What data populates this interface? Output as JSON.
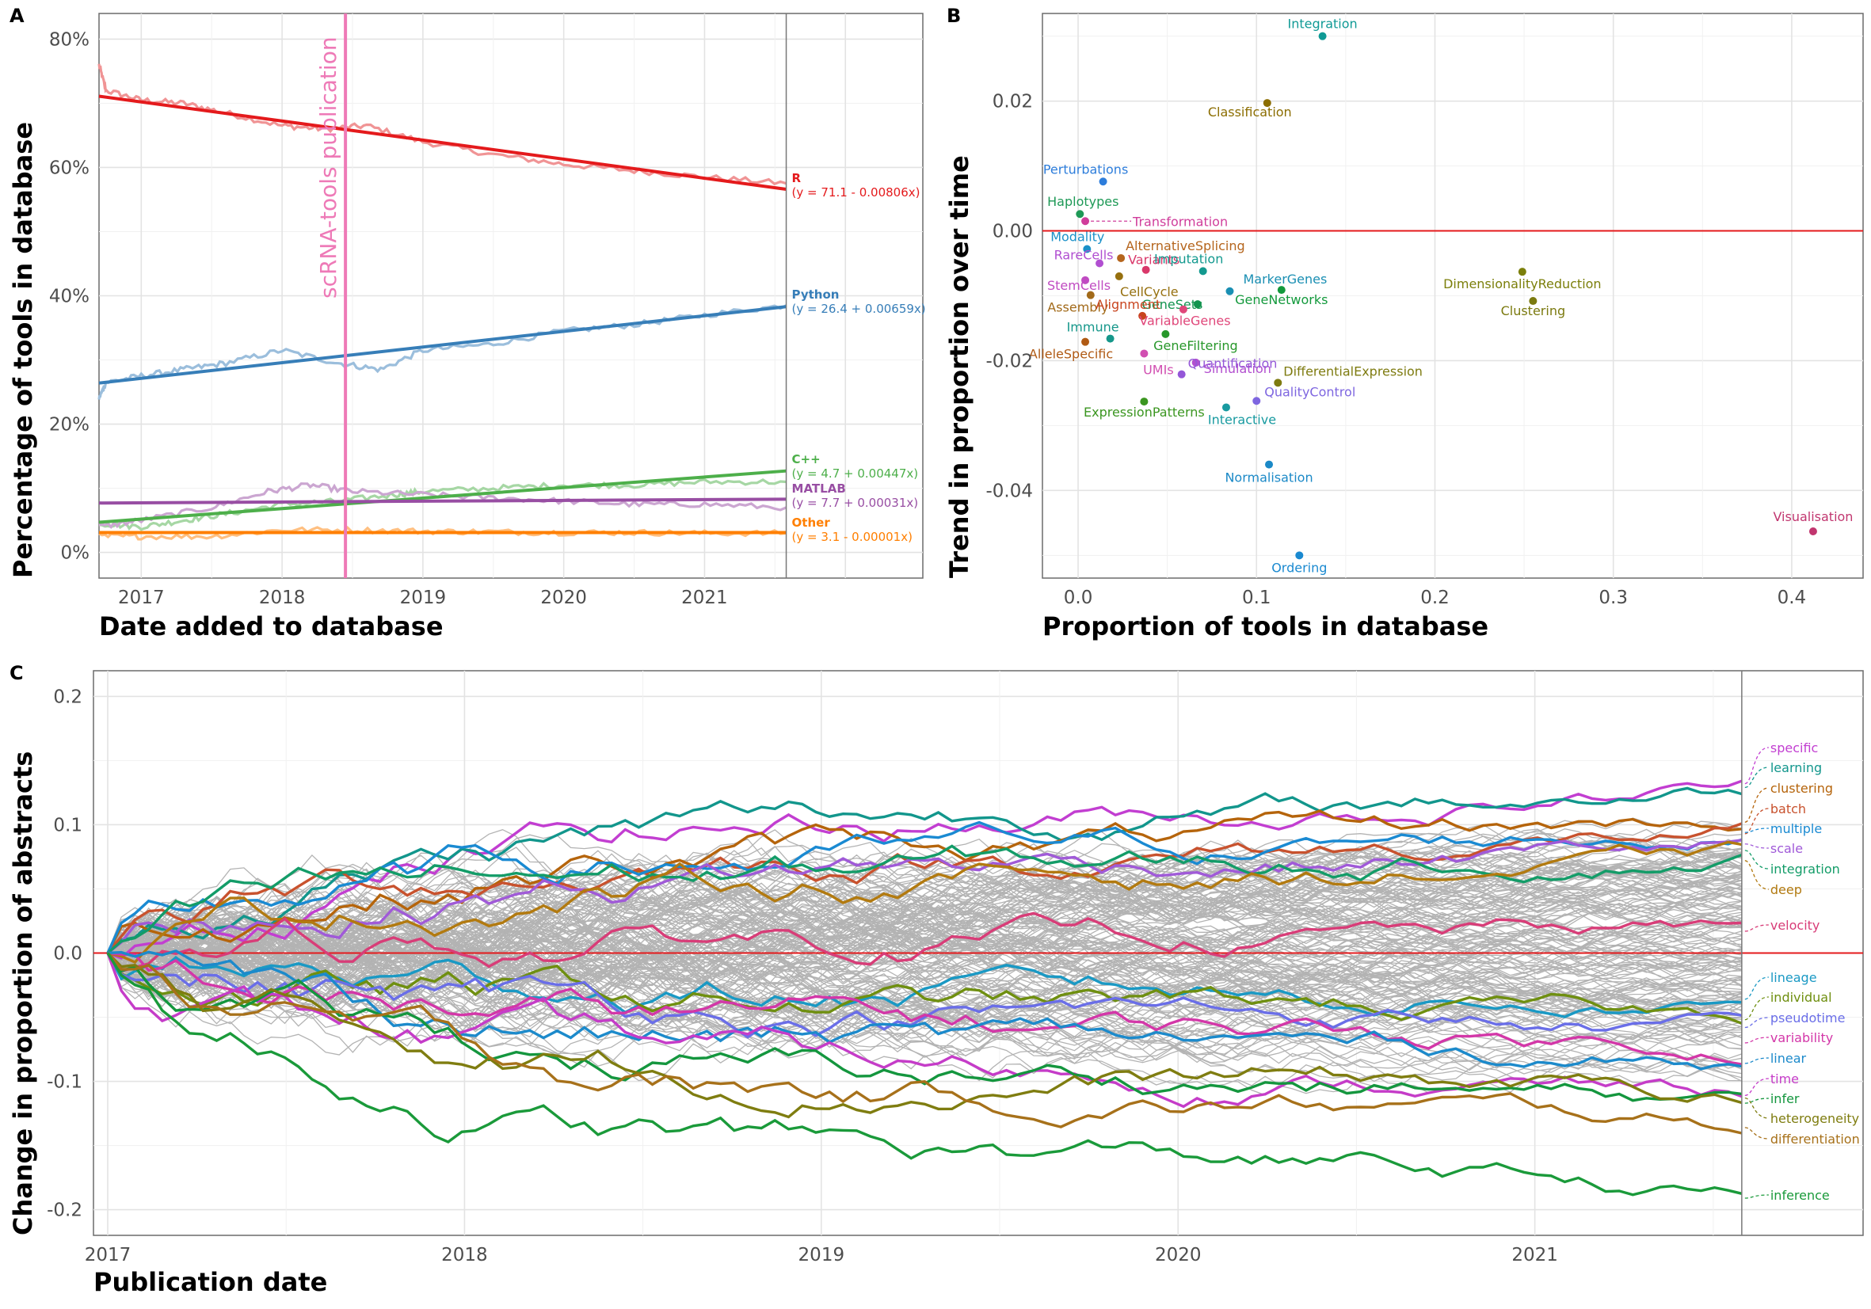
{
  "panels": {
    "A": {
      "label": "A",
      "xlabel": "Date added to database",
      "ylabel": "Percentage of tools in database",
      "xticks": [
        "2017",
        "2018",
        "2019",
        "2020",
        "2021"
      ],
      "yticks": [
        "0%",
        "20%",
        "40%",
        "60%",
        "80%"
      ],
      "vline_label": "scRNA-tools publication"
    },
    "B": {
      "label": "B",
      "xlabel": "Proportion of tools in database",
      "ylabel": "Trend in proportion over time",
      "xticks": [
        "0.0",
        "0.1",
        "0.2",
        "0.3",
        "0.4"
      ],
      "yticks": [
        "-0.04",
        "-0.02",
        "0.00",
        "0.02"
      ]
    },
    "C": {
      "label": "C",
      "xlabel": "Publication date",
      "ylabel": "Change in proportion of abstracts",
      "xticks": [
        "2017",
        "2018",
        "2019",
        "2020",
        "2021"
      ],
      "yticks": [
        "-0.2",
        "-0.1",
        "0.0",
        "0.1",
        "0.2"
      ]
    }
  },
  "chart_data": [
    {
      "type": "line",
      "panel": "A",
      "x_unit": "year",
      "xlim": [
        2016.7,
        2022.55
      ],
      "ylim": [
        -4,
        84
      ],
      "vline_x": 2018.45,
      "end_x": 2021.58,
      "series": [
        {
          "name": "R",
          "equation": "(y = 71.1 -  0.00806x)",
          "color": "#e41a1c",
          "light": "#f09495",
          "fit": [
            71.1,
            56.6
          ],
          "x": [
            2016.7,
            2016.75,
            2017.0,
            2017.3,
            2017.6,
            2018.0,
            2018.3,
            2018.6,
            2019.0,
            2019.5,
            2020.0,
            2020.5,
            2021.0,
            2021.58
          ],
          "y": [
            76,
            72,
            70.5,
            70,
            68.5,
            66.5,
            66,
            66.5,
            64,
            62,
            60.5,
            59.5,
            58.5,
            57.5
          ]
        },
        {
          "name": "Python",
          "equation": "(y = 26.4 + 0.00659x)",
          "color": "#377eb8",
          "light": "#9bbedc",
          "fit": [
            26.4,
            38.3
          ],
          "x": [
            2016.7,
            2016.75,
            2017.0,
            2017.3,
            2017.6,
            2018.0,
            2018.4,
            2018.7,
            2019.0,
            2019.5,
            2020.0,
            2020.5,
            2021.0,
            2021.58
          ],
          "y": [
            24,
            26.5,
            27.5,
            28.5,
            29.5,
            31.5,
            29.5,
            28.5,
            31.5,
            32.5,
            34.5,
            35.5,
            37,
            38.5
          ]
        },
        {
          "name": "C++",
          "equation": "(y = 4.7 + 0.00447x)",
          "color": "#4daf4a",
          "light": "#a6d7a4",
          "fit": [
            4.7,
            12.7
          ],
          "x": [
            2016.7,
            2017.0,
            2017.3,
            2017.6,
            2018.0,
            2018.4,
            2018.8,
            2019.0,
            2019.5,
            2020.0,
            2020.5,
            2021.0,
            2021.58
          ],
          "y": [
            4.5,
            4,
            5,
            6,
            7.5,
            8,
            9,
            9.5,
            10,
            10.5,
            10.5,
            11,
            11
          ]
        },
        {
          "name": "MATLAB",
          "equation": "(y = 7.7 + 0.00031x)",
          "color": "#984ea3",
          "light": "#cba6d1",
          "fit": [
            7.7,
            8.3
          ],
          "x": [
            2016.7,
            2017.0,
            2017.5,
            2017.9,
            2018.2,
            2018.5,
            2019.0,
            2019.5,
            2020.0,
            2020.5,
            2021.0,
            2021.58
          ],
          "y": [
            4,
            5,
            7,
            9.5,
            10.5,
            9.5,
            9,
            8.5,
            8,
            7.5,
            7.5,
            7
          ]
        },
        {
          "name": "Other",
          "equation": "(y = 3.1 -  0.00001x)",
          "color": "#ff7f00",
          "light": "#ffbf80",
          "fit": [
            3.1,
            3.1
          ],
          "x": [
            2016.7,
            2017.0,
            2017.5,
            2018.0,
            2018.5,
            2019.0,
            2019.5,
            2020.0,
            2020.5,
            2021.0,
            2021.58
          ],
          "y": [
            2.5,
            2.5,
            2.5,
            3.5,
            3.5,
            3.3,
            3.2,
            3.1,
            3.1,
            3,
            3
          ]
        }
      ]
    },
    {
      "type": "scatter",
      "panel": "B",
      "xlim": [
        -0.02,
        0.44
      ],
      "ylim": [
        -0.0535,
        0.0335
      ],
      "points": [
        {
          "name": "Integration",
          "x": 0.137,
          "y": 0.03,
          "color": "#109a95"
        },
        {
          "name": "Classification",
          "x": 0.106,
          "y": 0.0197,
          "color": "#8b6d00"
        },
        {
          "name": "Perturbations",
          "x": 0.014,
          "y": 0.0076,
          "color": "#2d7ddb"
        },
        {
          "name": "Haplotypes",
          "x": 0.001,
          "y": 0.0026,
          "color": "#1e9956"
        },
        {
          "name": "Transformation",
          "x": 0.004,
          "y": 0.0015,
          "color": "#d03d9b"
        },
        {
          "name": "Modality",
          "x": 0.005,
          "y": -0.0028,
          "color": "#1a90c8"
        },
        {
          "name": "AlternativeSplicing",
          "x": 0.024,
          "y": -0.0042,
          "color": "#b5651d"
        },
        {
          "name": "RareCells",
          "x": 0.012,
          "y": -0.005,
          "color": "#b14fd1"
        },
        {
          "name": "Variants",
          "x": 0.038,
          "y": -0.006,
          "color": "#d9386a"
        },
        {
          "name": "Imputation",
          "x": 0.07,
          "y": -0.0062,
          "color": "#13998f"
        },
        {
          "name": "StemCells",
          "x": 0.004,
          "y": -0.0076,
          "color": "#c04bc2"
        },
        {
          "name": "CellCycle",
          "x": 0.023,
          "y": -0.007,
          "color": "#96700f"
        },
        {
          "name": "MarkerGenes",
          "x": 0.085,
          "y": -0.0093,
          "color": "#1a8fb3"
        },
        {
          "name": "GeneSets",
          "x": 0.067,
          "y": -0.0113,
          "color": "#12934e"
        },
        {
          "name": "GeneNetworks",
          "x": 0.114,
          "y": -0.0091,
          "color": "#13993c"
        },
        {
          "name": "DimensionalityReduction",
          "x": 0.249,
          "y": -0.0063,
          "color": "#7b7f0a"
        },
        {
          "name": "Clustering",
          "x": 0.255,
          "y": -0.0108,
          "color": "#7b7a0f"
        },
        {
          "name": "Assembly",
          "x": 0.007,
          "y": -0.0099,
          "color": "#a26a1a"
        },
        {
          "name": "Alignment",
          "x": 0.036,
          "y": -0.0131,
          "color": "#c8441e"
        },
        {
          "name": "VariableGenes",
          "x": 0.059,
          "y": -0.0121,
          "color": "#e0477a"
        },
        {
          "name": "Immune",
          "x": 0.018,
          "y": -0.0166,
          "color": "#16978a"
        },
        {
          "name": "GeneFiltering",
          "x": 0.049,
          "y": -0.0159,
          "color": "#27972a"
        },
        {
          "name": "AlleleSpecific",
          "x": 0.004,
          "y": -0.0171,
          "color": "#b05a14"
        },
        {
          "name": "UMIs",
          "x": 0.037,
          "y": -0.0189,
          "color": "#d14fb1"
        },
        {
          "name": "Simulation",
          "x": 0.066,
          "y": -0.0203,
          "color": "#b24fcf"
        },
        {
          "name": "DifferentialExpression",
          "x": 0.112,
          "y": -0.0234,
          "color": "#7e7b10"
        },
        {
          "name": "Quantification",
          "x": 0.058,
          "y": -0.0221,
          "color": "#9457d8"
        },
        {
          "name": "QualityControl",
          "x": 0.1,
          "y": -0.0262,
          "color": "#7e66e0"
        },
        {
          "name": "ExpressionPatterns",
          "x": 0.037,
          "y": -0.0263,
          "color": "#3b9620"
        },
        {
          "name": "Interactive",
          "x": 0.083,
          "y": -0.0272,
          "color": "#189aa0"
        },
        {
          "name": "Normalisation",
          "x": 0.107,
          "y": -0.036,
          "color": "#1b89c7"
        },
        {
          "name": "Visualisation",
          "x": 0.412,
          "y": -0.0463,
          "color": "#c1366f"
        },
        {
          "name": "Ordering",
          "x": 0.124,
          "y": -0.05,
          "color": "#1a89d0"
        }
      ]
    },
    {
      "type": "line",
      "panel": "C",
      "x_unit": "year",
      "xlim": [
        2016.96,
        2021.92
      ],
      "ylim": [
        -0.22,
        0.22
      ],
      "end_x": 2021.58,
      "series": [
        {
          "name": "specific",
          "color": "#c23ed1",
          "final": 0.132
        },
        {
          "name": "learning",
          "color": "#12968c",
          "final": 0.129
        },
        {
          "name": "clustering",
          "color": "#b5640b",
          "final": 0.102
        },
        {
          "name": "batch",
          "color": "#c8522e",
          "final": 0.093
        },
        {
          "name": "multiple",
          "color": "#1a8ad2",
          "final": 0.094
        },
        {
          "name": "scale",
          "color": "#a05ad8",
          "final": 0.085
        },
        {
          "name": "integration",
          "color": "#139c68",
          "final": 0.08
        },
        {
          "name": "deep",
          "color": "#b27a10",
          "final": 0.072
        },
        {
          "name": "velocity",
          "color": "#d83d78",
          "final": 0.017
        },
        {
          "name": "lineage",
          "color": "#1a99c4",
          "final": -0.036
        },
        {
          "name": "individual",
          "color": "#6f8f10",
          "final": -0.052
        },
        {
          "name": "pseudotime",
          "color": "#6a6ee8",
          "final": -0.058
        },
        {
          "name": "variability",
          "color": "#d337a8",
          "final": -0.07
        },
        {
          "name": "linear",
          "color": "#1c8acb",
          "final": -0.086
        },
        {
          "name": "time",
          "color": "#c53cc8",
          "final": -0.111
        },
        {
          "name": "infer",
          "color": "#14963e",
          "final": -0.117
        },
        {
          "name": "heterogeneity",
          "color": "#7f7d10",
          "final": -0.113
        },
        {
          "name": "differentiation",
          "color": "#a7711a",
          "final": -0.136
        },
        {
          "name": "inference",
          "color": "#1a9a3a",
          "final": -0.191
        }
      ]
    }
  ]
}
